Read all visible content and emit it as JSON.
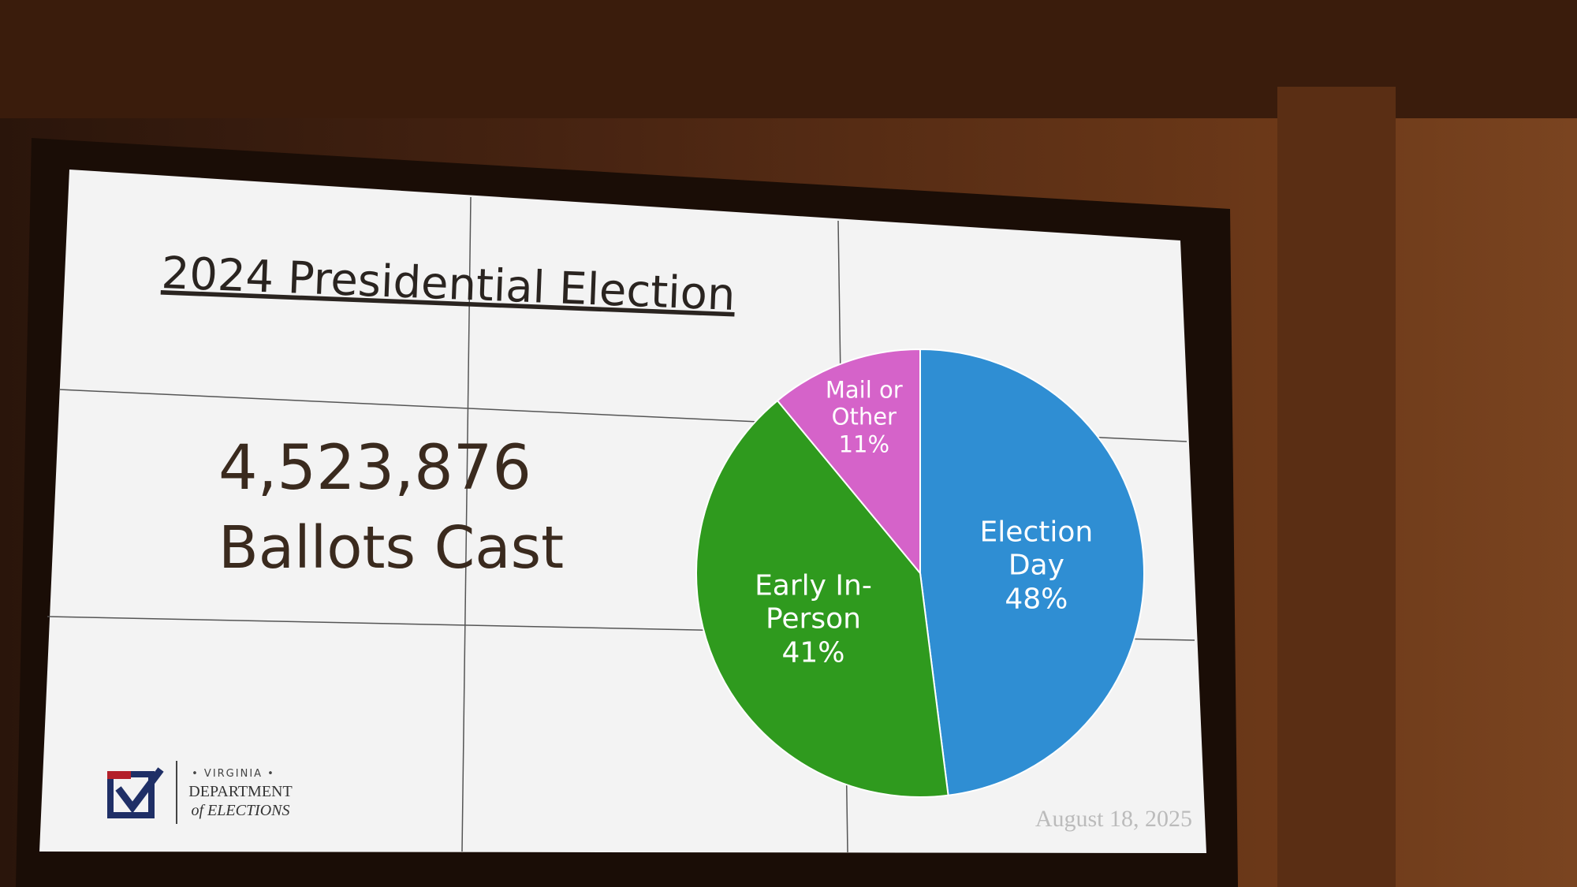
{
  "chart_data": {
    "type": "pie",
    "title": "2024 Presidential Election",
    "categories": [
      "Election Day",
      "Early In-Person",
      "Mail or Other"
    ],
    "values": [
      48,
      41,
      11
    ],
    "value_labels": [
      "48%",
      "41%",
      "11%"
    ],
    "colors": [
      "#2f8ed3",
      "#2f9a1e",
      "#d563c9"
    ]
  },
  "slide": {
    "headline": "4,523,876",
    "subheadline": "Ballots Cast",
    "logo": {
      "state": "• VIRGINIA •",
      "line1": "DEPARTMENT",
      "line2": "of ELECTIONS"
    },
    "date": "August 18, 2025"
  }
}
